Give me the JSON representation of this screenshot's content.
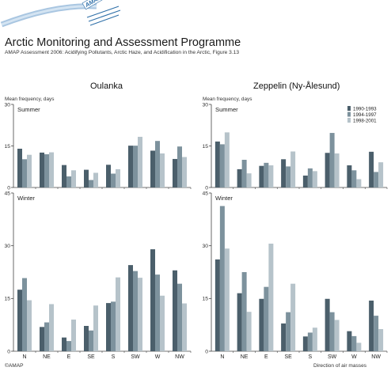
{
  "header": {
    "logo_text": "AMAP",
    "title": "Arctic Monitoring and Assessment Programme",
    "subtitle": "AMAP Assessment 2006: Acidifying Pollutants, Arctic Haze, and Acidification in the Arctic, Figure 3.13"
  },
  "footer": {
    "copyright": "©AMAP",
    "xlabel": "Direction of air masses"
  },
  "colors": {
    "series": [
      "#4b5f6b",
      "#7d929d",
      "#b6c3ca"
    ],
    "axis": "#444444",
    "logo_blue": "#2e6fa8"
  },
  "chart_data": [
    {
      "type": "bar",
      "title": "Oulanka",
      "ylabel": "Mean frequency, days",
      "categories": [
        "N",
        "NE",
        "E",
        "SE",
        "S",
        "SW",
        "W",
        "NW"
      ],
      "panels": [
        {
          "label": "Summer",
          "ylim": [
            0,
            30
          ],
          "yticks": [
            0,
            15,
            30
          ],
          "series": [
            {
              "values": [
                14.0,
                12.6,
                8.1,
                6.4,
                8.2,
                15.1,
                13.3,
                10.3
              ]
            },
            {
              "values": [
                10.2,
                12.0,
                4.0,
                2.7,
                5.0,
                15.1,
                16.8,
                14.8
              ]
            },
            {
              "values": [
                11.8,
                12.7,
                6.2,
                5.3,
                6.6,
                18.3,
                12.3,
                11.0
              ]
            }
          ]
        },
        {
          "label": "Winter",
          "ylim": [
            0,
            45
          ],
          "yticks": [
            0,
            15,
            30,
            45
          ],
          "series": [
            {
              "values": [
                17.5,
                6.9,
                3.9,
                7.2,
                13.7,
                24.5,
                29.0,
                23.0
              ]
            },
            {
              "values": [
                20.8,
                8.2,
                2.9,
                5.9,
                14.1,
                22.8,
                21.8,
                19.2
              ]
            },
            {
              "values": [
                14.5,
                13.4,
                9.0,
                13.0,
                21.0,
                20.9,
                15.8,
                13.6
              ]
            }
          ]
        }
      ]
    },
    {
      "type": "bar",
      "title": "Zeppelin (Ny-Ålesund)",
      "ylabel": "Mean frequency, days",
      "categories": [
        "N",
        "NE",
        "E",
        "SE",
        "S",
        "SW",
        "W",
        "NW"
      ],
      "legend": [
        "1990-1993",
        "1994-1997",
        "1998-2001"
      ],
      "legend_position": "top-right",
      "panels": [
        {
          "label": "Summer",
          "ylim": [
            0,
            30
          ],
          "yticks": [
            0,
            15,
            30
          ],
          "series": [
            {
              "name": "1990-1993",
              "values": [
                16.6,
                6.6,
                7.8,
                10.2,
                4.3,
                12.5,
                8.0,
                12.9
              ]
            },
            {
              "name": "1994-1997",
              "values": [
                15.6,
                10.0,
                8.9,
                7.6,
                6.9,
                19.7,
                6.2,
                5.6
              ]
            },
            {
              "name": "1998-2001",
              "values": [
                19.9,
                5.1,
                8.0,
                13.0,
                5.9,
                12.3,
                3.0,
                9.1
              ]
            }
          ]
        },
        {
          "label": "Winter",
          "ylim": [
            0,
            45
          ],
          "yticks": [
            0,
            15,
            30,
            45
          ],
          "series": [
            {
              "name": "1990-1993",
              "values": [
                26.1,
                16.5,
                14.9,
                7.9,
                4.2,
                14.9,
                5.7,
                14.4
              ]
            },
            {
              "name": "1994-1997",
              "values": [
                41.3,
                22.5,
                18.3,
                11.1,
                5.3,
                11.1,
                4.3,
                10.1
              ]
            },
            {
              "name": "1998-2001",
              "values": [
                29.2,
                11.2,
                30.6,
                19.2,
                6.7,
                8.9,
                2.4,
                6.3
              ]
            }
          ]
        }
      ]
    }
  ]
}
